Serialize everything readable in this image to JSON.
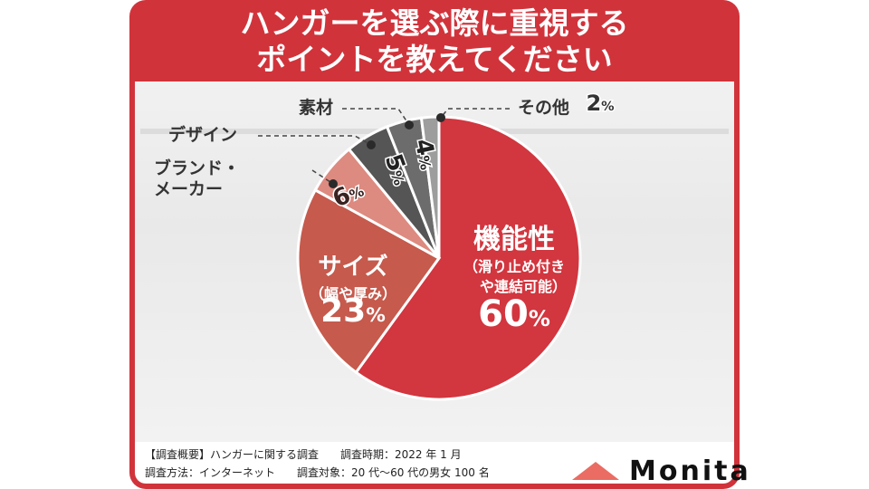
{
  "chart_data": {
    "type": "pie",
    "title": "ハンガーを選ぶ際に重視する\nポイントを教えてください",
    "categories": [
      "機能性",
      "サイズ",
      "ブランド・\nメーカー",
      "デザイン",
      "素材",
      "その他"
    ],
    "category_notes": [
      [
        "（滑り止め付き",
        "や連結可能）"
      ],
      [
        "（幅や厚み）"
      ],
      null,
      null,
      null,
      null
    ],
    "values": [
      60,
      23,
      6,
      5,
      4,
      2
    ],
    "value_unit": "%",
    "colors": [
      "#d2363f",
      "#c55a4d",
      "#dd8a80",
      "#555555",
      "#6c6c6c",
      "#9d9d9d"
    ]
  },
  "footer": {
    "lines": [
      "【調査概要】ハンガーに関する調査　　調査時期：2022 年 1 月",
      "調査方法：インターネット　　調査対象：20 代〜60 代の男女 100 名"
    ]
  },
  "brand": "Monita"
}
